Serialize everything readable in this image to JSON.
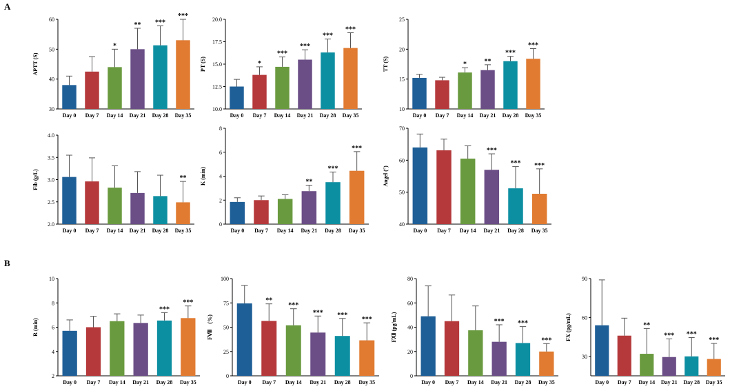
{
  "panel_labels": [
    "A",
    "B"
  ],
  "colors": [
    "#1f5f97",
    "#b5393b",
    "#6a9a3f",
    "#6b4e86",
    "#0d8fa2",
    "#e07b31"
  ],
  "chart_data": [
    {
      "type": "bar",
      "title": "",
      "xlabel": "",
      "ylabel": "APTT (S)",
      "categories": [
        "Day 0",
        "Day 7",
        "Day 14",
        "Day 21",
        "Day 28",
        "Day 35"
      ],
      "values": [
        38,
        42.5,
        44,
        50,
        51.3,
        53
      ],
      "errors": [
        3,
        5,
        6,
        7,
        6.5,
        7
      ],
      "significance": [
        "",
        "",
        "*",
        "**",
        "***",
        "***"
      ],
      "ylim": [
        30,
        60
      ],
      "yticks": [
        "30",
        "40",
        "50",
        "60"
      ]
    },
    {
      "type": "bar",
      "title": "",
      "xlabel": "",
      "ylabel": "PT (S)",
      "categories": [
        "Day 0",
        "Day 7",
        "Day 14",
        "Day 21",
        "Day 28",
        "Day 35"
      ],
      "values": [
        12.5,
        13.8,
        14.7,
        15.5,
        16.3,
        16.8
      ],
      "errors": [
        0.8,
        0.9,
        1.1,
        1.1,
        1.5,
        1.7
      ],
      "significance": [
        "",
        "*",
        "***",
        "***",
        "***",
        "***"
      ],
      "ylim": [
        10,
        20
      ],
      "yticks": [
        "10.0",
        "12.5",
        "15.0",
        "17.5",
        "20.0"
      ]
    },
    {
      "type": "bar",
      "title": "",
      "xlabel": "",
      "ylabel": "TT (S)",
      "categories": [
        "Day 0",
        "Day 7",
        "Day 14",
        "Day 21",
        "Day 28",
        "Day 35"
      ],
      "values": [
        15.2,
        14.8,
        16.1,
        16.5,
        18,
        18.4
      ],
      "errors": [
        0.6,
        0.5,
        0.8,
        0.9,
        0.8,
        1.7
      ],
      "significance": [
        "",
        "",
        "*",
        "**",
        "***",
        "***"
      ],
      "ylim": [
        10,
        25
      ],
      "yticks": [
        "10",
        "15",
        "20",
        "25"
      ]
    },
    {
      "type": "bar",
      "title": "",
      "xlabel": "",
      "ylabel": "Fib (g/L)",
      "categories": [
        "Day 0",
        "Day 7",
        "Day 14",
        "Day 21",
        "Day 28",
        "Day 35"
      ],
      "values": [
        3.06,
        2.96,
        2.82,
        2.7,
        2.63,
        2.49
      ],
      "errors": [
        0.49,
        0.53,
        0.49,
        0.48,
        0.47,
        0.47
      ],
      "significance": [
        "",
        "",
        "",
        "",
        "",
        "**"
      ],
      "ylim": [
        2.0,
        4.0
      ],
      "yticks": [
        "2.0",
        "2.5",
        "3.0",
        "3.5",
        "4.0"
      ]
    },
    {
      "type": "bar",
      "title": "",
      "xlabel": "",
      "ylabel": "K (min)",
      "categories": [
        "Day 0",
        "Day 7",
        "Day 14",
        "Day 21",
        "Day 28",
        "Day 35"
      ],
      "values": [
        1.85,
        2.0,
        2.1,
        2.75,
        3.5,
        4.45
      ],
      "errors": [
        0.35,
        0.35,
        0.35,
        0.5,
        0.85,
        1.6
      ],
      "significance": [
        "",
        "",
        "",
        "**",
        "***",
        "***"
      ],
      "ylim": [
        0,
        8
      ],
      "yticks": [
        "0",
        "2",
        "4",
        "6",
        "8"
      ]
    },
    {
      "type": "bar",
      "title": "",
      "xlabel": "",
      "ylabel": "Angel (°)",
      "categories": [
        "Day 0",
        "Day 7",
        "Day 14",
        "Day 21",
        "Day 28",
        "Day 35"
      ],
      "values": [
        64,
        63.1,
        60.5,
        57,
        51.2,
        49.5
      ],
      "errors": [
        4.2,
        3.5,
        4,
        5,
        6.8,
        7.8
      ],
      "significance": [
        "",
        "",
        "",
        "***",
        "***",
        "***"
      ],
      "ylim": [
        40,
        70
      ],
      "yticks": [
        "40",
        "50",
        "60",
        "70"
      ]
    },
    {
      "type": "bar",
      "title": "",
      "xlabel": "",
      "ylabel": "R (min)",
      "categories": [
        "Day 0",
        "Day 7",
        "Day 14",
        "Day 21",
        "Day 28",
        "Day 35"
      ],
      "values": [
        5.7,
        6.0,
        6.5,
        6.35,
        6.55,
        6.75
      ],
      "errors": [
        0.9,
        0.9,
        0.6,
        0.65,
        0.65,
        1.0
      ],
      "significance": [
        "",
        "",
        "",
        "",
        "***",
        "***"
      ],
      "ylim": [
        2,
        10
      ],
      "yticks": [
        "2",
        "4",
        "6",
        "8",
        "10"
      ]
    },
    {
      "type": "bar",
      "title": "",
      "xlabel": "",
      "ylabel": "FⅧ　(%)",
      "categories": [
        "Day 0",
        "Day 7",
        "Day 14",
        "Day 21",
        "Day 28",
        "Day 35"
      ],
      "values": [
        74.5,
        56.5,
        52,
        44.5,
        41,
        36.5
      ],
      "errors": [
        18.5,
        17.5,
        17,
        17,
        18,
        18
      ],
      "significance": [
        "",
        "**",
        "***",
        "***",
        "***",
        "***"
      ],
      "ylim": [
        0,
        100
      ],
      "yticks": [
        "0",
        "25",
        "50",
        "75",
        "100"
      ]
    },
    {
      "type": "bar",
      "title": "",
      "xlabel": "",
      "ylabel": "FⅫ (pg/mL)",
      "categories": [
        "Day 0",
        "Day 7",
        "Day 14",
        "Day 21",
        "Day 28",
        "Day 35"
      ],
      "values": [
        49,
        45,
        37.5,
        28,
        27,
        20
      ],
      "errors": [
        25,
        21.5,
        20,
        14,
        13.5,
        6.5
      ],
      "significance": [
        "",
        "",
        "",
        "***",
        "***",
        "***"
      ],
      "ylim": [
        0,
        80
      ],
      "yticks": [
        "0",
        "20",
        "40",
        "60",
        "80"
      ]
    },
    {
      "type": "bar",
      "title": "",
      "xlabel": "",
      "ylabel": "FX (pg/mL)",
      "categories": [
        "Day 0",
        "Day 7",
        "Day 14",
        "Day 21",
        "Day 28",
        "Day 35"
      ],
      "values": [
        54,
        46,
        32,
        29.5,
        30,
        28
      ],
      "errors": [
        35,
        13.5,
        19.5,
        14,
        14.5,
        12
      ],
      "significance": [
        "",
        "",
        "**",
        "***",
        "***",
        "***"
      ],
      "ylim": [
        15,
        90
      ],
      "yticks": [
        "30",
        "60",
        "90"
      ]
    }
  ]
}
